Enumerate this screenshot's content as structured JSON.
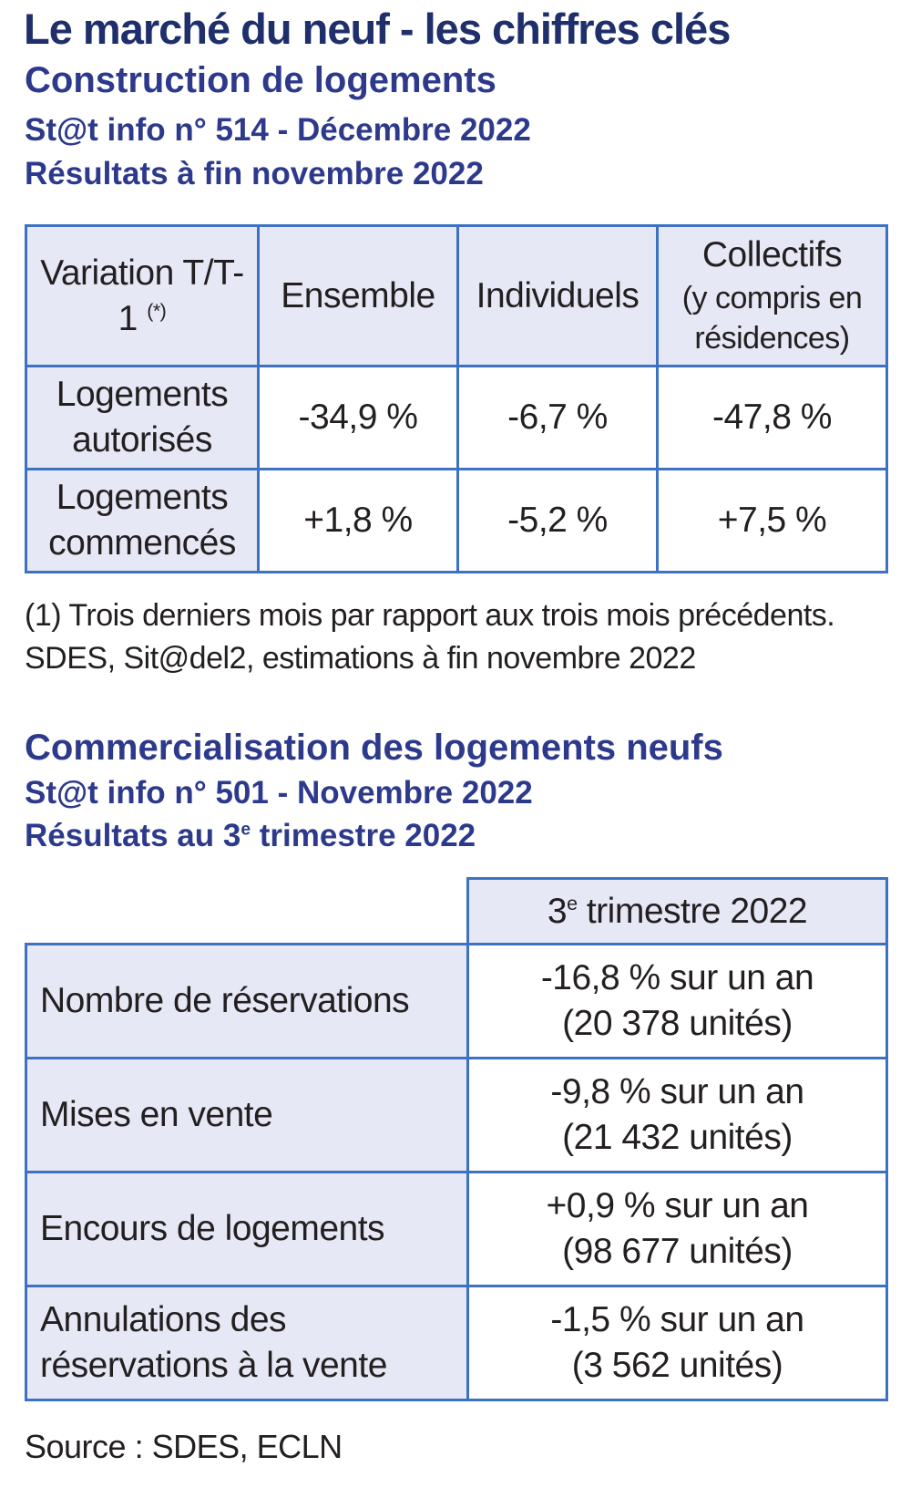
{
  "header": {
    "title": "Le marché du neuf - les chiffres clés"
  },
  "construction": {
    "title": "Construction de logements",
    "source_ref": "St@t info n° 514 - Décembre 2022",
    "period": "Résultats à fin novembre 2022",
    "table": {
      "corner": {
        "text": "Variation T/T-1",
        "note": "(*)"
      },
      "columns": [
        "Ensemble",
        "Individuels",
        {
          "title": "Collectifs",
          "sub": "(y compris en résidences)"
        }
      ],
      "rows": [
        [
          "Logements autorisés",
          "-34,9 %",
          "-6,7 %",
          "-47,8 %"
        ],
        [
          "Logements commencés",
          "+1,8 %",
          "-5,2 %",
          "+7,5 %"
        ]
      ]
    },
    "notes": [
      "(1) Trois derniers mois par rapport aux trois mois précédents.",
      "SDES, Sit@del2, estimations à fin novembre 2022"
    ]
  },
  "commercialisation": {
    "title": "Commercialisation des logements neufs",
    "source_ref": "St@t info n° 501 - Novembre 2022",
    "period": {
      "before": "Résultats au 3",
      "sup": "e",
      "after": " trimestre 2022"
    },
    "table": {
      "column": {
        "before": "3",
        "sup": "e",
        "after": " trimestre 2022"
      },
      "rows": [
        [
          "Nombre de réservations",
          "-16,8 % sur un an",
          "(20 378 unités)"
        ],
        [
          "Mises en vente",
          "-9,8 % sur un an",
          "(21 432 unités)"
        ],
        [
          "Encours de logements",
          "+0,9 % sur un an",
          "(98 677 unités)"
        ],
        [
          "Annulations des réservations à la vente",
          "-1,5 % sur un an",
          "(3 562 unités)"
        ]
      ]
    },
    "source": "Source : SDES, ECLN"
  }
}
